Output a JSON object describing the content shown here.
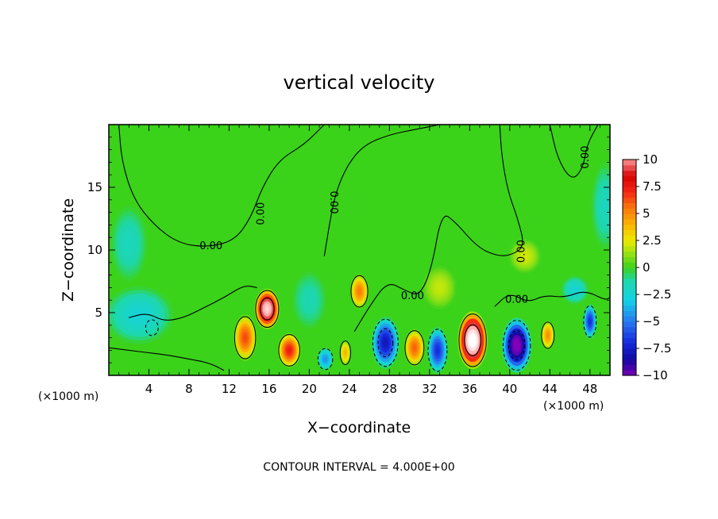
{
  "chart_data": {
    "type": "heatmap",
    "title": "vertical velocity",
    "xlabel": "X−coordinate",
    "ylabel": "Z−coordinate",
    "x_unit_left": "(×1000 m)",
    "x_unit_right": "(×1000 m)",
    "xlim": [
      0,
      50
    ],
    "ylim": [
      0,
      20
    ],
    "x_ticks": [
      4,
      8,
      12,
      16,
      20,
      24,
      28,
      32,
      36,
      40,
      44,
      48
    ],
    "x_tick_labels": [
      "4",
      "8",
      "12",
      "16",
      "20",
      "24",
      "28",
      "32",
      "36",
      "40",
      "44",
      "48"
    ],
    "y_ticks": [
      5,
      10,
      15
    ],
    "y_tick_labels": [
      "5",
      "10",
      "15"
    ],
    "colorbar": {
      "min": -10,
      "max": 10,
      "labels": [
        "10",
        "7.5",
        "5",
        "2.5",
        "0",
        "−2.5",
        "−5",
        "−7.5",
        "−10"
      ],
      "values": [
        10,
        7.5,
        5,
        2.5,
        0,
        -2.5,
        -5,
        -7.5,
        -10
      ]
    },
    "contour_labels": [
      {
        "text": "0.00",
        "x": 10.2,
        "y": 10.3,
        "rot": 0
      },
      {
        "text": "0.00",
        "x": 15.2,
        "y": 12.9,
        "rot": -90
      },
      {
        "text": "0.00",
        "x": 22.4,
        "y": 13.8,
        "rot": 90
      },
      {
        "text": "0.00",
        "x": 30.3,
        "y": 6.3,
        "rot": 0
      },
      {
        "text": "0.00",
        "x": 41.2,
        "y": 9.9,
        "rot": -90
      },
      {
        "text": "0.00",
        "x": 40.7,
        "y": 6.0,
        "rot": 0
      },
      {
        "text": "0.00",
        "x": 47.6,
        "y": 17.4,
        "rot": -90
      }
    ],
    "features": [
      {
        "x": 15.8,
        "y": 5.3,
        "value": 12,
        "sx": 1.1,
        "sy": 1.4
      },
      {
        "x": 13.6,
        "y": 3.0,
        "value": 6.5,
        "sx": 1.0,
        "sy": 1.6
      },
      {
        "x": 18.0,
        "y": 2.0,
        "value": 7.5,
        "sx": 1.0,
        "sy": 1.2
      },
      {
        "x": 25.0,
        "y": 6.7,
        "value": 5.5,
        "sx": 0.8,
        "sy": 1.2
      },
      {
        "x": 23.6,
        "y": 1.8,
        "value": 4,
        "sx": 0.5,
        "sy": 0.9
      },
      {
        "x": 27.6,
        "y": 2.6,
        "value": -8,
        "sx": 1.2,
        "sy": 1.8
      },
      {
        "x": 30.5,
        "y": 2.2,
        "value": 6,
        "sx": 0.9,
        "sy": 1.3
      },
      {
        "x": 32.8,
        "y": 2.0,
        "value": -7,
        "sx": 0.9,
        "sy": 1.6
      },
      {
        "x": 36.3,
        "y": 2.8,
        "value": 14,
        "sx": 1.3,
        "sy": 2.0
      },
      {
        "x": 40.7,
        "y": 2.4,
        "value": -11,
        "sx": 1.3,
        "sy": 1.9
      },
      {
        "x": 43.8,
        "y": 3.2,
        "value": 5,
        "sx": 0.6,
        "sy": 1.0
      },
      {
        "x": 48.0,
        "y": 4.3,
        "value": -7,
        "sx": 0.6,
        "sy": 1.2
      },
      {
        "x": 21.6,
        "y": 1.3,
        "value": -4.5,
        "sx": 0.7,
        "sy": 0.8
      },
      {
        "x": 4.3,
        "y": 3.8,
        "value": -4,
        "sx": 0.6,
        "sy": 0.6
      },
      {
        "x": 3.0,
        "y": 4.8,
        "value": -2.5,
        "sx": 3.0,
        "sy": 2.0
      },
      {
        "x": 2.0,
        "y": 10.5,
        "value": -1.8,
        "sx": 1.6,
        "sy": 2.6
      },
      {
        "x": 49.5,
        "y": 13.5,
        "value": -1.8,
        "sx": 1.2,
        "sy": 3.0
      },
      {
        "x": 46.5,
        "y": 6.8,
        "value": -2.5,
        "sx": 1.2,
        "sy": 1.0
      },
      {
        "x": 41.5,
        "y": 9.5,
        "value": 2.2,
        "sx": 1.4,
        "sy": 1.2
      },
      {
        "x": 20.0,
        "y": 6.0,
        "value": -1.5,
        "sx": 1.5,
        "sy": 2.0
      },
      {
        "x": 33.0,
        "y": 7.0,
        "value": 2.0,
        "sx": 1.5,
        "sy": 1.5
      }
    ],
    "footnote": "CONTOUR INTERVAL = 4.000E+00"
  }
}
